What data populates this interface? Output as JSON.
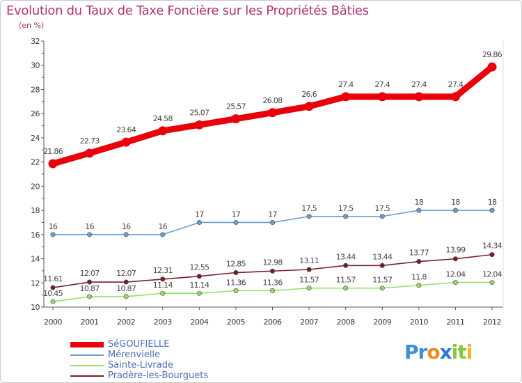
{
  "header": {
    "title": "Evolution du Taux de Taxe Foncière sur les Propriétés Bâties",
    "unit": "(en %)"
  },
  "logo": {
    "text": "Proxiti",
    "letters": [
      {
        "char": "P",
        "color": "#3b8fd6"
      },
      {
        "char": "r",
        "color": "#3b8fd6"
      },
      {
        "char": "o",
        "color": "#f08a1c"
      },
      {
        "char": "x",
        "color": "#2a7bd0"
      },
      {
        "char": "i",
        "color": "#8cc63f"
      },
      {
        "char": "t",
        "color": "#8cc63f"
      },
      {
        "char": "i",
        "color": "#f0b81c"
      }
    ]
  },
  "chart_data": {
    "type": "line",
    "x": [
      2000,
      2001,
      2002,
      2003,
      2004,
      2005,
      2006,
      2007,
      2008,
      2009,
      2010,
      2011,
      2012
    ],
    "ylim": [
      10,
      32
    ],
    "yticks": [
      10,
      12,
      14,
      16,
      18,
      20,
      22,
      24,
      26,
      28,
      30,
      32
    ],
    "xlabel": "",
    "ylabel": "",
    "grid": false,
    "legend_position": "bottom-left",
    "series": [
      {
        "name": "SéGOUFIELLE",
        "color": "#e8000b",
        "values": [
          21.86,
          22.73,
          23.64,
          24.58,
          25.07,
          25.57,
          26.08,
          26.6,
          27.4,
          27.4,
          27.4,
          27.4,
          29.86
        ],
        "labels": [
          "21.86",
          "22.73",
          "23.64",
          "24.58",
          "25.07",
          "25.57",
          "26.08",
          "26.6",
          "27.4",
          "27.4",
          "27.4",
          "27.4",
          "29.86"
        ]
      },
      {
        "name": "Mérenvielle",
        "color": "#6a9fcf",
        "values": [
          16,
          16,
          16,
          16,
          17,
          17,
          17,
          17.5,
          17.5,
          17.5,
          18,
          18,
          18
        ],
        "labels": [
          "16",
          "16",
          "16",
          "16",
          "17",
          "17",
          "17",
          "17.5",
          "17.5",
          "17.5",
          "18",
          "18",
          "18"
        ]
      },
      {
        "name": "Sainte-Livrade",
        "color": "#99dd66",
        "values": [
          10.45,
          10.87,
          10.87,
          11.14,
          11.14,
          11.36,
          11.36,
          11.57,
          11.57,
          11.57,
          11.8,
          12.04,
          12.04
        ],
        "labels": [
          "10.45",
          "10.87",
          "10.87",
          "11.14",
          "11.14",
          "11.36",
          "11.36",
          "11.57",
          "11.57",
          "11.57",
          "11.8",
          "12.04",
          "12.04"
        ]
      },
      {
        "name": "Pradère-les-Bourguets",
        "color": "#7a1f2a",
        "values": [
          11.61,
          12.07,
          12.07,
          12.31,
          12.55,
          12.85,
          12.98,
          13.11,
          13.44,
          13.44,
          13.77,
          13.99,
          14.34
        ],
        "labels": [
          "11.61",
          "12.07",
          "12.07",
          "12.31",
          "12.55",
          "12.85",
          "12.98",
          "13.11",
          "13.44",
          "13.44",
          "13.77",
          "13.99",
          "14.34"
        ]
      }
    ]
  }
}
